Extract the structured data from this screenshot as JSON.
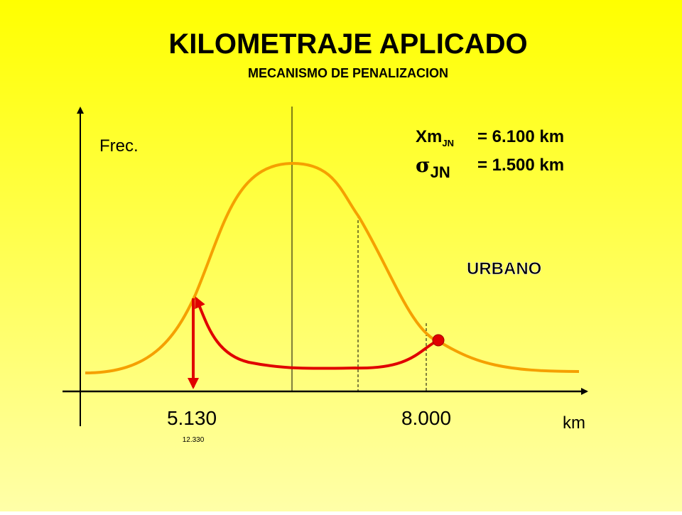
{
  "header": {
    "title": "KILOMETRAJE APLICADO",
    "subtitle": "MECANISMO DE PENALIZACION"
  },
  "axes": {
    "y_label": "Frec.",
    "x_label": "km"
  },
  "stats": {
    "mean_symbol": "Xm",
    "mean_subscript": "JN",
    "mean_value": "= 6.100 km",
    "sigma_symbol": "σ",
    "sigma_subscript": "JN",
    "sigma_value": "= 1.500 km"
  },
  "region_label": "URBANO",
  "markers": {
    "left": "5.130",
    "right": "8.000",
    "left_note": "12.330"
  }
}
